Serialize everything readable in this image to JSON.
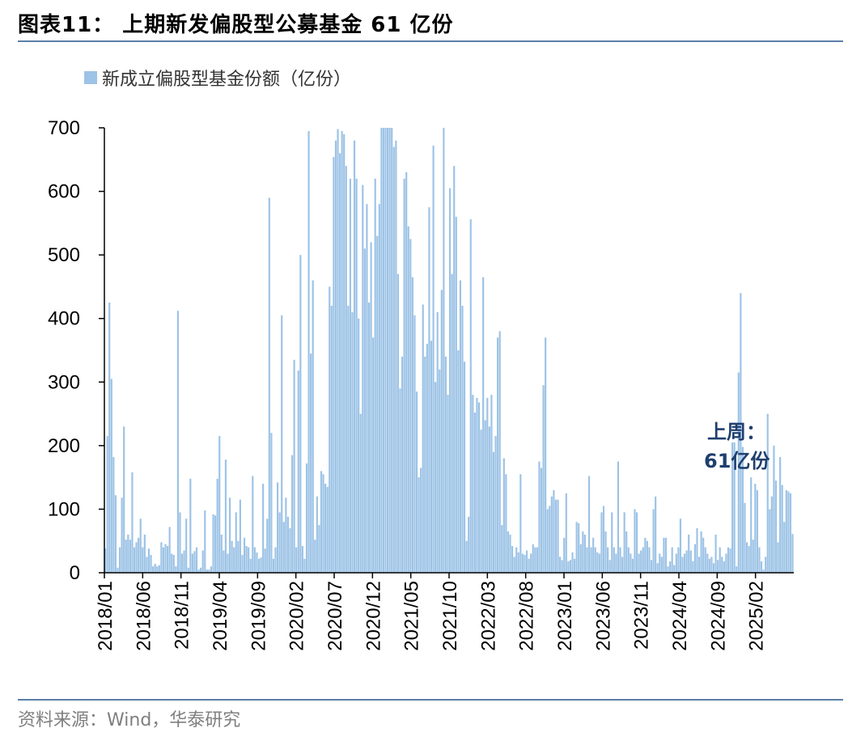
{
  "header": {
    "title": "图表11：  上期新发偏股型公募基金 61 亿份"
  },
  "footer": {
    "source": "资料来源：Wind，华泰研究"
  },
  "colors": {
    "bar": "#9dc3e6",
    "rule": "#5b7fa8",
    "annotation": "#1f3f6e"
  },
  "chart_data": {
    "type": "bar",
    "title": "",
    "xlabel": "",
    "ylabel": "",
    "ylim": [
      0,
      700
    ],
    "yticks": [
      0,
      100,
      200,
      300,
      400,
      500,
      600,
      700
    ],
    "legend": {
      "position": "top-left",
      "label": "新成立偏股型基金份额（亿份）"
    },
    "grid": false,
    "x_tick_labels": [
      "2018/01",
      "2018/06",
      "2018/11",
      "2019/04",
      "2019/09",
      "2020/02",
      "2020/07",
      "2020/12",
      "2021/05",
      "2021/10",
      "2022/03",
      "2022/08",
      "2023/01",
      "2023/06",
      "2023/11",
      "2024/04",
      "2024/09",
      "2025/02"
    ],
    "series": [
      {
        "name": "新成立偏股型基金份额（亿份）",
        "frequency": "weekly",
        "start": "2018/01",
        "end": "2025/05",
        "values": [
          38,
          215,
          425,
          305,
          182,
          122,
          8,
          40,
          118,
          230,
          52,
          60,
          52,
          158,
          40,
          48,
          55,
          85,
          40,
          60,
          25,
          38,
          28,
          10,
          14,
          10,
          12,
          48,
          40,
          45,
          42,
          72,
          30,
          28,
          10,
          412,
          95,
          30,
          35,
          85,
          8,
          148,
          30,
          34,
          40,
          5,
          8,
          35,
          98,
          5,
          5,
          10,
          92,
          90,
          148,
          215,
          60,
          35,
          178,
          30,
          118,
          50,
          40,
          95,
          50,
          115,
          28,
          55,
          42,
          40,
          22,
          152,
          40,
          32,
          22,
          24,
          140,
          38,
          85,
          590,
          220,
          22,
          40,
          142,
          95,
          405,
          80,
          118,
          88,
          70,
          185,
          335,
          40,
          318,
          500,
          42,
          22,
          172,
          695,
          345,
          460,
          52,
          120,
          75,
          160,
          155,
          140,
          135,
          450,
          420,
          654,
          680,
          698,
          660,
          695,
          690,
          640,
          420,
          620,
          410,
          680,
          620,
          400,
          250,
          610,
          510,
          580,
          425,
          520,
          370,
          620,
          530,
          580,
          700,
          700,
          700,
          700,
          700,
          700,
          670,
          680,
          470,
          290,
          340,
          620,
          630,
          545,
          525,
          465,
          405,
          285,
          150,
          165,
          422,
          340,
          360,
          575,
          365,
          672,
          300,
          410,
          320,
          445,
          700,
          340,
          280,
          605,
          470,
          640,
          560,
          350,
          460,
          420,
          332,
          50,
          88,
          556,
          280,
          252,
          275,
          268,
          225,
          465,
          240,
          275,
          230,
          280,
          190,
          215,
          370,
          380,
          75,
          180,
          155,
          65,
          60,
          42,
          25,
          40,
          32,
          155,
          30,
          28,
          35,
          22,
          30,
          45,
          40,
          40,
          175,
          165,
          295,
          370,
          100,
          105,
          120,
          130,
          115,
          115,
          25,
          20,
          55,
          125,
          18,
          20,
          32,
          22,
          80,
          78,
          45,
          65,
          60,
          40,
          152,
          40,
          55,
          40,
          32,
          30,
          95,
          105,
          65,
          40,
          20,
          95,
          40,
          30,
          175,
          40,
          25,
          95,
          65,
          40,
          30,
          22,
          100,
          95,
          30,
          35,
          40,
          55,
          50,
          40,
          20,
          100,
          120,
          15,
          30,
          25,
          55,
          55,
          10,
          18,
          40,
          12,
          30,
          40,
          85,
          25,
          30,
          35,
          60,
          35,
          18,
          45,
          70,
          25,
          65,
          55,
          40,
          30,
          22,
          25,
          15,
          60,
          20,
          40,
          25,
          18,
          30,
          40,
          38,
          205,
          205,
          10,
          315,
          440,
          198,
          110,
          48,
          42,
          150,
          52,
          140,
          130,
          40,
          18,
          5,
          25,
          250,
          100,
          120,
          200,
          145,
          48,
          182,
          138,
          80,
          130,
          128,
          125,
          61
        ]
      }
    ],
    "annotation": {
      "line1": "上周：",
      "line2": "61亿份"
    }
  }
}
